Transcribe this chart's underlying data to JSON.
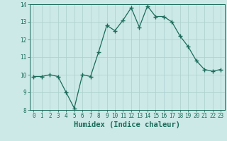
{
  "x": [
    0,
    1,
    2,
    3,
    4,
    5,
    6,
    7,
    8,
    9,
    10,
    11,
    12,
    13,
    14,
    15,
    16,
    17,
    18,
    19,
    20,
    21,
    22,
    23
  ],
  "y": [
    9.9,
    9.9,
    10.0,
    9.9,
    9.0,
    8.1,
    10.0,
    9.9,
    11.3,
    12.8,
    12.5,
    13.1,
    13.8,
    12.7,
    13.9,
    13.3,
    13.3,
    13.0,
    12.2,
    11.6,
    10.8,
    10.3,
    10.2,
    10.3
  ],
  "line_color": "#1a6b5a",
  "marker": "+",
  "marker_size": 4,
  "bg_color": "#cce9e7",
  "grid_color": "#aad0cd",
  "xlabel": "Humidex (Indice chaleur)",
  "xlabel_color": "#1a6b5a",
  "xlabel_fontsize": 7.5,
  "tick_color": "#1a6b5a",
  "tick_fontsize": 5.5,
  "ylim": [
    8,
    14
  ],
  "xlim": [
    -0.5,
    23.5
  ],
  "yticks": [
    8,
    9,
    10,
    11,
    12,
    13,
    14
  ],
  "xticks": [
    0,
    1,
    2,
    3,
    4,
    5,
    6,
    7,
    8,
    9,
    10,
    11,
    12,
    13,
    14,
    15,
    16,
    17,
    18,
    19,
    20,
    21,
    22,
    23
  ]
}
